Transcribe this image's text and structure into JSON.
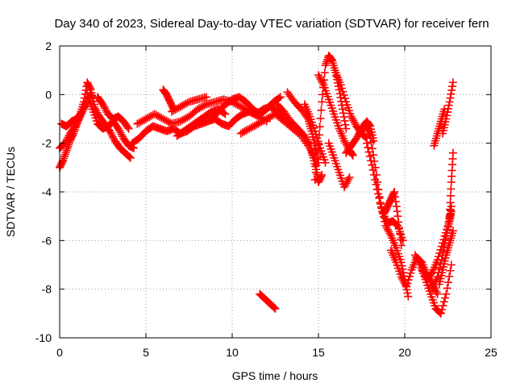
{
  "chart_data": {
    "type": "scatter",
    "title": "Day 340 of 2023, Sidereal Day-to-day VTEC variation (SDTVAR) for receiver fern",
    "xlabel": "GPS time / hours",
    "ylabel": "SDTVAR / TECUs",
    "xlim": [
      0,
      25
    ],
    "ylim": [
      -10,
      2
    ],
    "xticks": [
      0,
      5,
      10,
      15,
      20,
      25
    ],
    "yticks": [
      -10,
      -8,
      -6,
      -4,
      -2,
      0,
      2
    ],
    "grid": true,
    "marker": "+",
    "series_color": "#ff0000",
    "tracks": [
      {
        "name": "track-1",
        "x": [
          0.0,
          0.2,
          0.4,
          0.6,
          0.8,
          1.0,
          1.2,
          1.4,
          1.6,
          1.8,
          2.0
        ],
        "y": [
          -3.0,
          -2.7,
          -2.3,
          -1.9,
          -1.6,
          -1.2,
          -0.8,
          -0.3,
          0.5,
          0.2,
          -0.4
        ]
      },
      {
        "name": "track-2",
        "x": [
          0.0,
          0.3,
          0.6,
          0.9,
          1.2,
          1.5,
          1.8
        ],
        "y": [
          -2.2,
          -2.0,
          -1.6,
          -1.3,
          -0.9,
          -0.4,
          0.0
        ]
      },
      {
        "name": "track-3",
        "x": [
          0.1,
          0.4,
          0.7,
          1.0,
          1.3,
          1.6
        ],
        "y": [
          -1.2,
          -1.3,
          -1.1,
          -1.0,
          -0.7,
          -0.3
        ]
      },
      {
        "name": "track-4",
        "x": [
          1.6,
          1.9,
          2.2,
          2.5,
          2.8,
          3.1,
          3.4,
          3.7,
          4.0,
          4.3
        ],
        "y": [
          0.0,
          -0.6,
          -1.2,
          -1.4,
          -1.3,
          -1.1,
          -1.4,
          -1.8,
          -2.1,
          -2.2
        ]
      },
      {
        "name": "track-5",
        "x": [
          2.0,
          2.3,
          2.6,
          2.9,
          3.2,
          3.5,
          3.8,
          4.1
        ],
        "y": [
          -0.5,
          -0.9,
          -1.2,
          -1.5,
          -1.9,
          -2.2,
          -2.4,
          -2.6
        ]
      },
      {
        "name": "track-6",
        "x": [
          2.2,
          2.5,
          2.8,
          3.1,
          3.4,
          3.7,
          4.0
        ],
        "y": [
          -0.1,
          -0.4,
          -0.8,
          -1.0,
          -0.9,
          -1.1,
          -1.4
        ]
      },
      {
        "name": "track-7",
        "x": [
          4.2,
          4.6,
          5.0,
          5.4,
          5.8,
          6.2,
          6.6,
          7.0,
          7.4,
          7.8,
          8.2,
          8.6,
          9.0,
          9.4,
          9.8,
          10.2,
          10.6,
          11.0,
          11.4,
          11.8,
          12.2,
          12.6,
          13.0,
          13.4
        ],
        "y": [
          -2.0,
          -1.8,
          -1.5,
          -1.3,
          -1.4,
          -1.5,
          -1.4,
          -1.6,
          -1.5,
          -1.3,
          -1.2,
          -1.1,
          -1.0,
          -1.2,
          -1.3,
          -1.0,
          -0.8,
          -0.7,
          -0.8,
          -0.6,
          -0.5,
          -0.7,
          -1.0,
          -1.3
        ]
      },
      {
        "name": "track-8",
        "x": [
          4.5,
          5.0,
          5.5,
          6.0,
          6.5,
          7.0,
          7.5,
          8.0,
          8.5,
          9.0,
          9.5,
          10.0,
          10.5,
          11.0,
          11.5,
          12.0
        ],
        "y": [
          -1.2,
          -1.0,
          -0.8,
          -1.0,
          -1.2,
          -1.1,
          -0.9,
          -0.6,
          -0.4,
          -0.3,
          -0.2,
          -0.3,
          -0.5,
          -0.7,
          -0.9,
          -1.1
        ]
      },
      {
        "name": "track-9",
        "x": [
          6.0,
          6.2,
          6.4,
          6.6
        ],
        "y": [
          0.2,
          0.0,
          -0.3,
          -0.6
        ]
      },
      {
        "name": "track-10",
        "x": [
          6.5,
          7.0,
          7.5,
          8.0,
          8.5
        ],
        "y": [
          -0.7,
          -0.5,
          -0.3,
          -0.2,
          -0.1
        ]
      },
      {
        "name": "track-11",
        "x": [
          6.8,
          7.2,
          7.6,
          8.0,
          8.4,
          8.8,
          9.2,
          9.6
        ],
        "y": [
          -1.7,
          -1.5,
          -1.3,
          -1.1,
          -0.9,
          -0.7,
          -0.6,
          -0.8
        ]
      },
      {
        "name": "track-12",
        "x": [
          8.8,
          9.2,
          9.6,
          10.0,
          10.4,
          10.8,
          11.2,
          11.6,
          12.0,
          12.4,
          12.8
        ],
        "y": [
          -1.0,
          -0.7,
          -0.4,
          -0.2,
          -0.1,
          -0.3,
          -0.6,
          -0.8,
          -0.6,
          -0.3,
          -0.1
        ]
      },
      {
        "name": "track-13",
        "x": [
          10.5,
          11.0,
          11.5,
          12.0,
          12.5,
          13.0,
          13.5,
          14.0,
          14.5,
          14.8
        ],
        "y": [
          -1.6,
          -1.4,
          -1.2,
          -1.0,
          -0.8,
          -1.1,
          -1.4,
          -1.7,
          -2.2,
          -2.6
        ]
      },
      {
        "name": "track-14",
        "x": [
          12.6,
          13.0,
          13.4,
          13.8,
          14.2,
          14.5,
          14.7,
          14.9,
          15.0,
          15.2
        ],
        "y": [
          -0.4,
          -0.7,
          -1.1,
          -1.4,
          -1.7,
          -2.1,
          -2.6,
          -3.2,
          -3.6,
          -3.3
        ]
      },
      {
        "name": "track-15",
        "x": [
          13.2,
          13.6,
          14.0,
          14.4,
          14.6,
          14.8,
          15.0
        ],
        "y": [
          0.1,
          -0.3,
          -0.6,
          -1.0,
          -1.5,
          -2.1,
          -2.8
        ]
      },
      {
        "name": "track-16",
        "x": [
          14.2,
          14.5,
          14.8,
          15.1,
          15.4
        ],
        "y": [
          -0.4,
          -0.9,
          -1.5,
          -2.2,
          -2.8
        ]
      },
      {
        "name": "track-17",
        "x": [
          11.6,
          11.9,
          12.2,
          12.5
        ],
        "y": [
          -8.2,
          -8.4,
          -8.6,
          -8.8
        ]
      },
      {
        "name": "track-18",
        "x": [
          14.8,
          15.0,
          15.2,
          15.4,
          15.6,
          15.8,
          16.0,
          16.2,
          16.4,
          16.6
        ],
        "y": [
          -3.5,
          -2.0,
          -0.3,
          1.2,
          1.6,
          1.4,
          0.9,
          0.2,
          -0.6,
          -1.4
        ]
      },
      {
        "name": "track-19",
        "x": [
          15.0,
          15.3,
          15.6,
          15.9,
          16.2,
          16.5,
          16.8,
          17.0
        ],
        "y": [
          0.8,
          0.4,
          -0.2,
          -0.8,
          -1.4,
          -1.9,
          -2.3,
          -2.5
        ]
      },
      {
        "name": "track-20",
        "x": [
          15.6,
          15.9,
          16.2,
          16.5,
          16.8
        ],
        "y": [
          -2.0,
          -2.6,
          -3.2,
          -3.8,
          -3.4
        ]
      },
      {
        "name": "track-21",
        "x": [
          16.0,
          16.3,
          16.6,
          16.9,
          17.2,
          17.5,
          17.8
        ],
        "y": [
          0.9,
          0.4,
          -0.3,
          -0.9,
          -1.3,
          -1.6,
          -1.8
        ]
      },
      {
        "name": "track-22",
        "x": [
          16.6,
          16.9,
          17.2,
          17.5,
          17.8,
          18.0,
          18.2
        ],
        "y": [
          -2.4,
          -2.1,
          -1.8,
          -1.4,
          -1.1,
          -1.3,
          -1.9
        ]
      },
      {
        "name": "track-23",
        "x": [
          17.4,
          17.7,
          18.0,
          18.3,
          18.6,
          18.9,
          19.2,
          19.5,
          19.8,
          20.0,
          20.2
        ],
        "y": [
          -1.6,
          -1.2,
          -1.7,
          -3.0,
          -4.5,
          -5.4,
          -5.8,
          -6.3,
          -6.9,
          -7.6,
          -8.3
        ]
      },
      {
        "name": "track-24",
        "x": [
          17.8,
          18.1,
          18.4,
          18.7,
          19.0,
          19.3,
          19.6,
          19.9
        ],
        "y": [
          -2.0,
          -2.9,
          -3.9,
          -4.8,
          -5.3,
          -5.2,
          -5.4,
          -6.0
        ]
      },
      {
        "name": "track-25",
        "x": [
          18.8,
          19.0,
          19.2,
          19.4,
          19.6,
          19.8
        ],
        "y": [
          -4.9,
          -4.6,
          -4.3,
          -4.0,
          -5.0,
          -6.2
        ]
      },
      {
        "name": "track-26",
        "x": [
          19.2,
          19.5,
          19.8,
          20.1,
          20.4,
          20.7,
          21.0,
          21.3,
          21.6,
          21.9
        ],
        "y": [
          -6.4,
          -6.9,
          -7.5,
          -7.9,
          -7.2,
          -6.7,
          -6.9,
          -7.4,
          -7.8,
          -8.2
        ]
      },
      {
        "name": "track-27",
        "x": [
          20.6,
          20.9,
          21.2,
          21.5,
          21.8,
          22.1,
          22.4,
          22.7
        ],
        "y": [
          -6.6,
          -7.0,
          -7.6,
          -8.2,
          -8.8,
          -9.0,
          -8.2,
          -7.0
        ]
      },
      {
        "name": "track-28",
        "x": [
          21.0,
          21.3,
          21.6,
          21.9,
          22.2,
          22.5,
          22.7
        ],
        "y": [
          -7.2,
          -7.6,
          -7.3,
          -6.8,
          -6.1,
          -5.4,
          -4.6
        ]
      },
      {
        "name": "track-29",
        "x": [
          21.6,
          21.9,
          22.2,
          22.4,
          22.6,
          22.7
        ],
        "y": [
          -8.0,
          -7.5,
          -6.6,
          -5.8,
          -5.2,
          -4.8
        ]
      },
      {
        "name": "track-30",
        "x": [
          22.0,
          22.2,
          22.4,
          22.6,
          22.8
        ],
        "y": [
          -7.8,
          -7.2,
          -6.6,
          -6.1,
          -5.6
        ]
      },
      {
        "name": "track-31",
        "x": [
          22.6,
          22.7,
          22.8
        ],
        "y": [
          -5.0,
          -3.6,
          -2.4
        ]
      },
      {
        "name": "track-32",
        "x": [
          21.7,
          21.9,
          22.1,
          22.3
        ],
        "y": [
          -2.1,
          -1.6,
          -1.1,
          -0.6
        ]
      },
      {
        "name": "track-33",
        "x": [
          22.2,
          22.4,
          22.6,
          22.8
        ],
        "y": [
          -1.6,
          -1.0,
          -0.3,
          0.5
        ]
      }
    ]
  }
}
